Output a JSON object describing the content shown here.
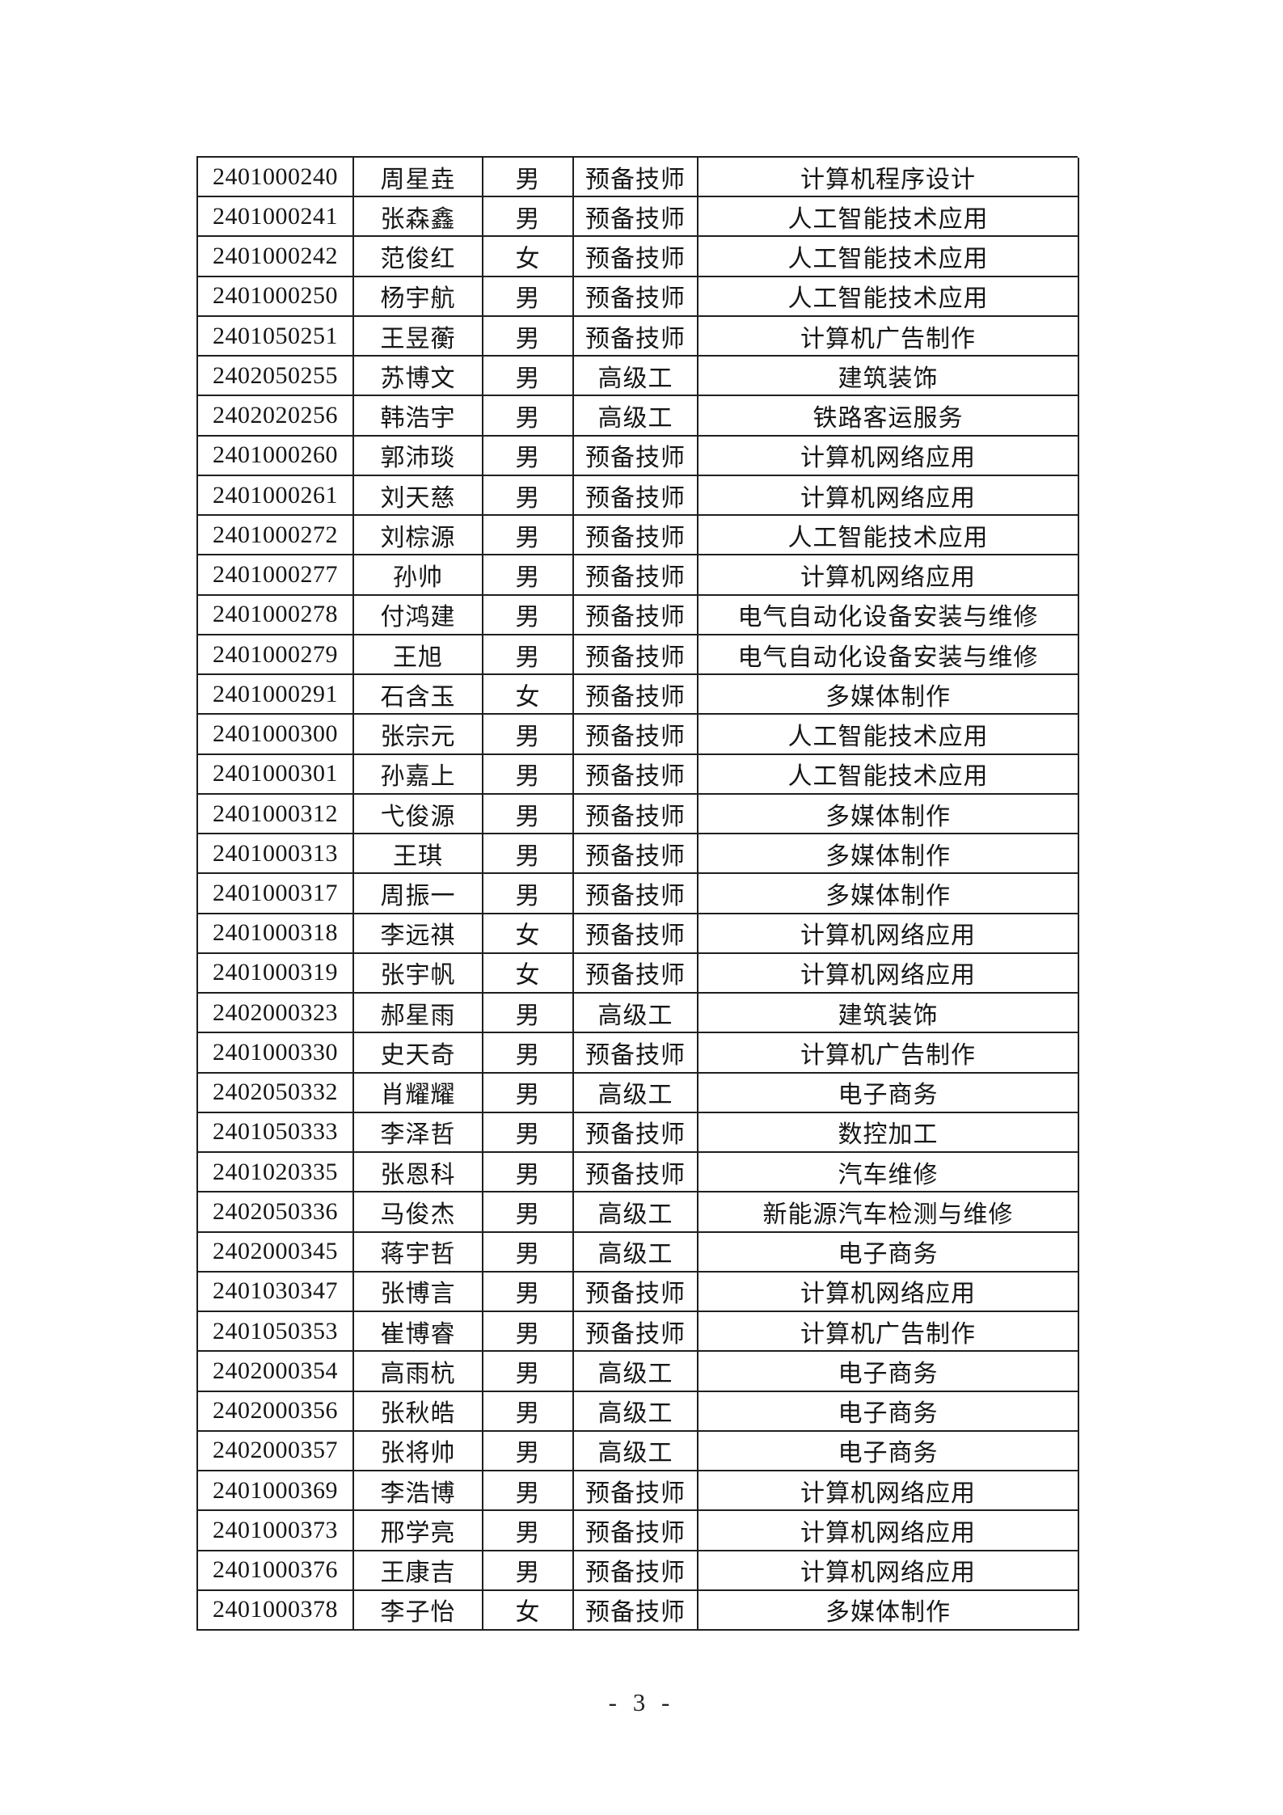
{
  "footer": {
    "page_number": "- 3 -"
  },
  "colors": {
    "background": "#ffffff",
    "text": "#161616",
    "border": "#1f1f1f"
  },
  "table": {
    "rows": [
      {
        "id": "2401000240",
        "name": "周星垚",
        "gender": "男",
        "level": "预备技师",
        "major": "计算机程序设计"
      },
      {
        "id": "2401000241",
        "name": "张森鑫",
        "gender": "男",
        "level": "预备技师",
        "major": "人工智能技术应用"
      },
      {
        "id": "2401000242",
        "name": "范俊红",
        "gender": "女",
        "level": "预备技师",
        "major": "人工智能技术应用"
      },
      {
        "id": "2401000250",
        "name": "杨宇航",
        "gender": "男",
        "level": "预备技师",
        "major": "人工智能技术应用"
      },
      {
        "id": "2401050251",
        "name": "王昱蘅",
        "gender": "男",
        "level": "预备技师",
        "major": "计算机广告制作"
      },
      {
        "id": "2402050255",
        "name": "苏博文",
        "gender": "男",
        "level": "高级工",
        "major": "建筑装饰"
      },
      {
        "id": "2402020256",
        "name": "韩浩宇",
        "gender": "男",
        "level": "高级工",
        "major": "铁路客运服务"
      },
      {
        "id": "2401000260",
        "name": "郭沛琰",
        "gender": "男",
        "level": "预备技师",
        "major": "计算机网络应用"
      },
      {
        "id": "2401000261",
        "name": "刘天慈",
        "gender": "男",
        "level": "预备技师",
        "major": "计算机网络应用"
      },
      {
        "id": "2401000272",
        "name": "刘棕源",
        "gender": "男",
        "level": "预备技师",
        "major": "人工智能技术应用"
      },
      {
        "id": "2401000277",
        "name": "孙帅",
        "gender": "男",
        "level": "预备技师",
        "major": "计算机网络应用"
      },
      {
        "id": "2401000278",
        "name": "付鸿建",
        "gender": "男",
        "level": "预备技师",
        "major": "电气自动化设备安装与维修"
      },
      {
        "id": "2401000279",
        "name": "王旭",
        "gender": "男",
        "level": "预备技师",
        "major": "电气自动化设备安装与维修"
      },
      {
        "id": "2401000291",
        "name": "石含玉",
        "gender": "女",
        "level": "预备技师",
        "major": "多媒体制作"
      },
      {
        "id": "2401000300",
        "name": "张宗元",
        "gender": "男",
        "level": "预备技师",
        "major": "人工智能技术应用"
      },
      {
        "id": "2401000301",
        "name": "孙嘉上",
        "gender": "男",
        "level": "预备技师",
        "major": "人工智能技术应用"
      },
      {
        "id": "2401000312",
        "name": "弋俊源",
        "gender": "男",
        "level": "预备技师",
        "major": "多媒体制作"
      },
      {
        "id": "2401000313",
        "name": "王琪",
        "gender": "男",
        "level": "预备技师",
        "major": "多媒体制作"
      },
      {
        "id": "2401000317",
        "name": "周振一",
        "gender": "男",
        "level": "预备技师",
        "major": "多媒体制作"
      },
      {
        "id": "2401000318",
        "name": "李远祺",
        "gender": "女",
        "level": "预备技师",
        "major": "计算机网络应用"
      },
      {
        "id": "2401000319",
        "name": "张宇帆",
        "gender": "女",
        "level": "预备技师",
        "major": "计算机网络应用"
      },
      {
        "id": "2402000323",
        "name": "郝星雨",
        "gender": "男",
        "level": "高级工",
        "major": "建筑装饰"
      },
      {
        "id": "2401000330",
        "name": "史天奇",
        "gender": "男",
        "level": "预备技师",
        "major": "计算机广告制作"
      },
      {
        "id": "2402050332",
        "name": "肖耀耀",
        "gender": "男",
        "level": "高级工",
        "major": "电子商务"
      },
      {
        "id": "2401050333",
        "name": "李泽哲",
        "gender": "男",
        "level": "预备技师",
        "major": "数控加工"
      },
      {
        "id": "2401020335",
        "name": "张恩科",
        "gender": "男",
        "level": "预备技师",
        "major": "汽车维修"
      },
      {
        "id": "2402050336",
        "name": "马俊杰",
        "gender": "男",
        "level": "高级工",
        "major": "新能源汽车检测与维修"
      },
      {
        "id": "2402000345",
        "name": "蒋宇哲",
        "gender": "男",
        "level": "高级工",
        "major": "电子商务"
      },
      {
        "id": "2401030347",
        "name": "张博言",
        "gender": "男",
        "level": "预备技师",
        "major": "计算机网络应用"
      },
      {
        "id": "2401050353",
        "name": "崔博睿",
        "gender": "男",
        "level": "预备技师",
        "major": "计算机广告制作"
      },
      {
        "id": "2402000354",
        "name": "高雨杭",
        "gender": "男",
        "level": "高级工",
        "major": "电子商务"
      },
      {
        "id": "2402000356",
        "name": "张秋皓",
        "gender": "男",
        "level": "高级工",
        "major": "电子商务"
      },
      {
        "id": "2402000357",
        "name": "张将帅",
        "gender": "男",
        "level": "高级工",
        "major": "电子商务"
      },
      {
        "id": "2401000369",
        "name": "李浩博",
        "gender": "男",
        "level": "预备技师",
        "major": "计算机网络应用"
      },
      {
        "id": "2401000373",
        "name": "邢学亮",
        "gender": "男",
        "level": "预备技师",
        "major": "计算机网络应用"
      },
      {
        "id": "2401000376",
        "name": "王康吉",
        "gender": "男",
        "level": "预备技师",
        "major": "计算机网络应用"
      },
      {
        "id": "2401000378",
        "name": "李子怡",
        "gender": "女",
        "level": "预备技师",
        "major": "多媒体制作"
      }
    ]
  }
}
